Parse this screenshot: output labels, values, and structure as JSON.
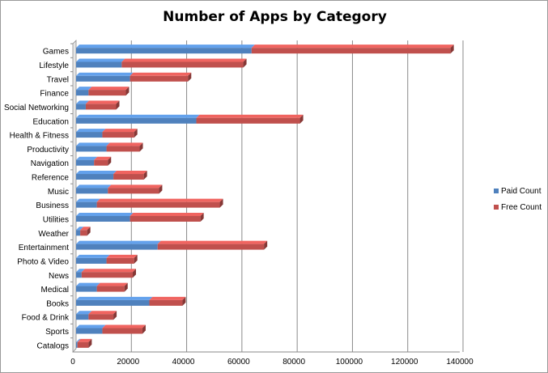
{
  "chart_data": {
    "type": "bar",
    "orientation": "horizontal",
    "stacked": true,
    "three_d": true,
    "title": "Number of Apps by Category",
    "xlabel": "",
    "ylabel": "",
    "xlim": [
      0,
      140000
    ],
    "x_ticks": [
      0,
      20000,
      40000,
      60000,
      80000,
      100000,
      120000,
      140000
    ],
    "x_tick_labels": [
      "0",
      "20000",
      "40000",
      "60000",
      "80000",
      "100000",
      "120000",
      "140000"
    ],
    "grid": true,
    "legend_position": "right",
    "categories": [
      "Games",
      "Lifestyle",
      "Travel",
      "Finance",
      "Social Networking",
      "Education",
      "Health & Fitness",
      "Productivity",
      "Navigation",
      "Reference",
      "Music",
      "Business",
      "Utilities",
      "Weather",
      "Entertainment",
      "Photo & Video",
      "News",
      "Medical",
      "Books",
      "Food & Drink",
      "Sports",
      "Catalogs"
    ],
    "series": [
      {
        "name": "Paid Count",
        "color": "#4f81bd",
        "values": [
          63500,
          16500,
          19500,
          4500,
          3500,
          43500,
          9500,
          11000,
          6500,
          13500,
          11500,
          7500,
          19500,
          1500,
          29500,
          11000,
          2000,
          7500,
          26500,
          4500,
          9500,
          500
        ]
      },
      {
        "name": "Free Count",
        "color": "#c0504d",
        "values": [
          72000,
          44000,
          21000,
          13500,
          11000,
          37500,
          11500,
          12000,
          5000,
          11000,
          18500,
          44500,
          25500,
          2500,
          38500,
          10000,
          18500,
          10000,
          12000,
          9000,
          14500,
          4000
        ]
      }
    ]
  }
}
